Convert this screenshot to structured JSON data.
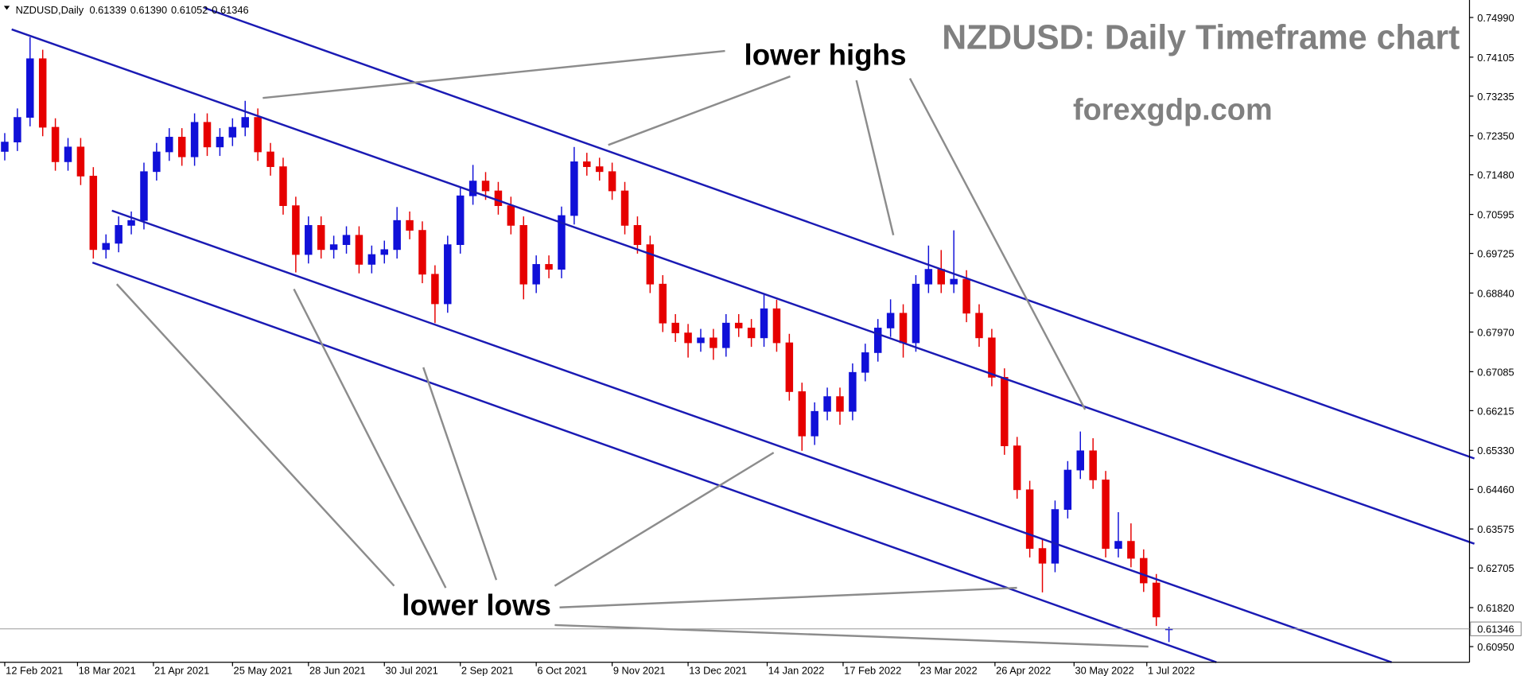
{
  "chart_data": {
    "type": "candlestick",
    "title": "NZDUSD: Daily Timeframe chart",
    "subtitle": "forexgdp.com",
    "symbol_label": "NZDUSD,Daily",
    "quote_labels": [
      "0.61339",
      "0.61390",
      "0.61052",
      "0.61346"
    ],
    "annotations": [
      "lower highs",
      "lower lows"
    ],
    "up_color": "#1010d8",
    "down_color": "#e60000",
    "xlim": [
      -1.5,
      463
    ],
    "ylim": [
      0.606,
      0.7538
    ],
    "xticks": [
      {
        "value": 0,
        "label": "12 Feb 2021"
      },
      {
        "value": 23,
        "label": "18 Mar 2021"
      },
      {
        "value": 47,
        "label": "21 Apr 2021"
      },
      {
        "value": 72,
        "label": "25 May 2021"
      },
      {
        "value": 96,
        "label": "28 Jun 2021"
      },
      {
        "value": 120,
        "label": "30 Jul 2021"
      },
      {
        "value": 144,
        "label": "2 Sep 2021"
      },
      {
        "value": 168,
        "label": "6 Oct 2021"
      },
      {
        "value": 192,
        "label": "9 Nov 2021"
      },
      {
        "value": 216,
        "label": "13 Dec 2021"
      },
      {
        "value": 241,
        "label": "14 Jan 2022"
      },
      {
        "value": 265,
        "label": "17 Feb 2022"
      },
      {
        "value": 289,
        "label": "23 Mar 2022"
      },
      {
        "value": 313,
        "label": "26 Apr 2022"
      },
      {
        "value": 338,
        "label": "30 May 2022"
      },
      {
        "value": 361,
        "label": "1 Jul 2022"
      }
    ],
    "yticks": [
      {
        "value": 0.7499,
        "label": "0.74990"
      },
      {
        "value": 0.74105,
        "label": "0.74105"
      },
      {
        "value": 0.73235,
        "label": "0.73235"
      },
      {
        "value": 0.7235,
        "label": "0.72350"
      },
      {
        "value": 0.7148,
        "label": "0.71480"
      },
      {
        "value": 0.70595,
        "label": "0.70595"
      },
      {
        "value": 0.69725,
        "label": "0.69725"
      },
      {
        "value": 0.6884,
        "label": "0.68840"
      },
      {
        "value": 0.6797,
        "label": "0.67970"
      },
      {
        "value": 0.67085,
        "label": "0.67085"
      },
      {
        "value": 0.66215,
        "label": "0.66215"
      },
      {
        "value": 0.6533,
        "label": "0.65330"
      },
      {
        "value": 0.6446,
        "label": "0.64460"
      },
      {
        "value": 0.63575,
        "label": "0.63575"
      },
      {
        "value": 0.62705,
        "label": "0.62705"
      },
      {
        "value": 0.6182,
        "label": "0.61820"
      },
      {
        "value": 0.6095,
        "label": "0.60950"
      }
    ],
    "last_price": {
      "value": 0.61346,
      "label": "0.61346"
    },
    "x": [
      0,
      4,
      8,
      12,
      16,
      20,
      24,
      28,
      32,
      36,
      40,
      44,
      48,
      52,
      56,
      60,
      64,
      68,
      72,
      76,
      80,
      84,
      88,
      92,
      96,
      100,
      104,
      108,
      112,
      116,
      120,
      124,
      128,
      132,
      136,
      140,
      144,
      148,
      152,
      156,
      160,
      164,
      168,
      172,
      176,
      180,
      184,
      188,
      192,
      196,
      200,
      204,
      208,
      212,
      216,
      220,
      224,
      228,
      232,
      236,
      240,
      244,
      248,
      252,
      256,
      260,
      264,
      268,
      272,
      276,
      280,
      284,
      288,
      292,
      296,
      300,
      304,
      308,
      312,
      316,
      320,
      324,
      328,
      332,
      336,
      340,
      344,
      348,
      352,
      356,
      360,
      364,
      368
    ],
    "open": [
      0.72,
      0.7221,
      0.7276,
      0.7407,
      0.7254,
      0.7177,
      0.721,
      0.7145,
      0.6981,
      0.6995,
      0.7035,
      0.7046,
      0.7155,
      0.7199,
      0.7232,
      0.7188,
      0.7265,
      0.721,
      0.7232,
      0.7254,
      0.7276,
      0.7199,
      0.7166,
      0.7079,
      0.697,
      0.7035,
      0.6981,
      0.6992,
      0.7013,
      0.6948,
      0.697,
      0.6981,
      0.7046,
      0.7024,
      0.6926,
      0.686,
      0.6992,
      0.7101,
      0.7134,
      0.7112,
      0.7079,
      0.7035,
      0.6904,
      0.6948,
      0.6937,
      0.7057,
      0.7177,
      0.7166,
      0.7155,
      0.7112,
      0.7035,
      0.6992,
      0.6904,
      0.6817,
      0.6795,
      0.6773,
      0.6784,
      0.6762,
      0.6817,
      0.6806,
      0.6784,
      0.6849,
      0.6773,
      0.6664,
      0.6565,
      0.662,
      0.6653,
      0.662,
      0.6707,
      0.6751,
      0.6806,
      0.6839,
      0.6773,
      0.6904,
      0.6937,
      0.6904,
      0.6915,
      0.6839,
      0.6784,
      0.6696,
      0.6543,
      0.6445,
      0.6314,
      0.6281,
      0.6401,
      0.6489,
      0.6532,
      0.6467,
      0.6314,
      0.633,
      0.6292,
      0.6237,
      0.61339
    ],
    "high": [
      0.7241,
      0.7296,
      0.7455,
      0.7427,
      0.7274,
      0.723,
      0.723,
      0.7165,
      0.7015,
      0.7055,
      0.7066,
      0.7175,
      0.7219,
      0.7252,
      0.7252,
      0.7285,
      0.7285,
      0.7252,
      0.7274,
      0.7313,
      0.7296,
      0.7219,
      0.7186,
      0.7099,
      0.7055,
      0.7055,
      0.7012,
      0.7033,
      0.7033,
      0.699,
      0.7001,
      0.7076,
      0.7066,
      0.7044,
      0.6946,
      0.7012,
      0.7121,
      0.717,
      0.7154,
      0.7132,
      0.7099,
      0.7055,
      0.6968,
      0.6968,
      0.7077,
      0.721,
      0.7197,
      0.7186,
      0.7175,
      0.7132,
      0.7055,
      0.7012,
      0.6924,
      0.6837,
      0.6815,
      0.6804,
      0.6804,
      0.6837,
      0.6837,
      0.6826,
      0.688,
      0.6869,
      0.6793,
      0.6684,
      0.664,
      0.6673,
      0.6673,
      0.6727,
      0.6771,
      0.6826,
      0.687,
      0.6859,
      0.6924,
      0.699,
      0.698,
      0.7024,
      0.6935,
      0.6859,
      0.6804,
      0.6716,
      0.6563,
      0.6465,
      0.6334,
      0.6421,
      0.6509,
      0.6575,
      0.656,
      0.6487,
      0.6395,
      0.637,
      0.6312,
      0.6257,
      0.6139
    ],
    "low": [
      0.718,
      0.7201,
      0.7256,
      0.7234,
      0.7157,
      0.7157,
      0.7125,
      0.6961,
      0.6961,
      0.6975,
      0.7015,
      0.7026,
      0.7135,
      0.7179,
      0.7168,
      0.7168,
      0.719,
      0.719,
      0.7212,
      0.7234,
      0.7179,
      0.7146,
      0.7059,
      0.693,
      0.695,
      0.6961,
      0.6961,
      0.6972,
      0.6928,
      0.6928,
      0.695,
      0.6961,
      0.7004,
      0.6906,
      0.6817,
      0.684,
      0.6972,
      0.7081,
      0.7092,
      0.7059,
      0.7015,
      0.687,
      0.6884,
      0.6917,
      0.6917,
      0.7037,
      0.7146,
      0.7135,
      0.7092,
      0.7015,
      0.6972,
      0.6884,
      0.6797,
      0.6775,
      0.674,
      0.6753,
      0.6735,
      0.6742,
      0.6786,
      0.6764,
      0.6764,
      0.6753,
      0.6644,
      0.6532,
      0.6545,
      0.66,
      0.659,
      0.66,
      0.6687,
      0.6731,
      0.6786,
      0.674,
      0.6753,
      0.6884,
      0.6884,
      0.6884,
      0.6819,
      0.6764,
      0.6676,
      0.6523,
      0.6425,
      0.6294,
      0.6216,
      0.6261,
      0.6381,
      0.6469,
      0.6447,
      0.6294,
      0.6294,
      0.6272,
      0.6217,
      0.6141,
      0.61052
    ],
    "close": [
      0.7221,
      0.7276,
      0.7407,
      0.7254,
      0.7177,
      0.721,
      0.7145,
      0.6981,
      0.6995,
      0.7035,
      0.7046,
      0.7155,
      0.7199,
      0.7232,
      0.7188,
      0.7265,
      0.721,
      0.7232,
      0.7254,
      0.7276,
      0.7199,
      0.7166,
      0.7079,
      0.697,
      0.7035,
      0.6981,
      0.6992,
      0.7013,
      0.6948,
      0.697,
      0.6981,
      0.7046,
      0.7024,
      0.6926,
      0.686,
      0.6992,
      0.7101,
      0.7134,
      0.7112,
      0.7079,
      0.7035,
      0.6904,
      0.6948,
      0.6937,
      0.7057,
      0.7177,
      0.7166,
      0.7155,
      0.7112,
      0.7035,
      0.6992,
      0.6904,
      0.6817,
      0.6795,
      0.6773,
      0.6784,
      0.6762,
      0.6817,
      0.6806,
      0.6784,
      0.6849,
      0.6773,
      0.6664,
      0.6565,
      0.662,
      0.6653,
      0.662,
      0.6707,
      0.6751,
      0.6806,
      0.6839,
      0.6773,
      0.6904,
      0.6937,
      0.6904,
      0.6915,
      0.6839,
      0.6784,
      0.6696,
      0.6543,
      0.6445,
      0.6314,
      0.6281,
      0.6401,
      0.6489,
      0.6532,
      0.6467,
      0.6314,
      0.633,
      0.6292,
      0.6237,
      0.6161,
      0.61346
    ]
  }
}
